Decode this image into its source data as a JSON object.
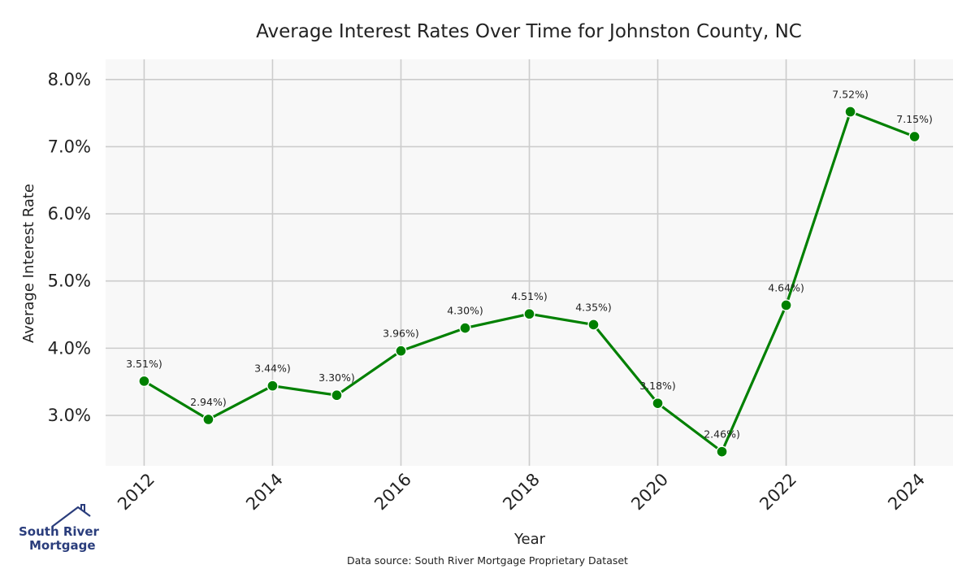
{
  "chart_data": {
    "type": "line",
    "title": "Average Interest Rates Over Time for Johnston County, NC",
    "xlabel": "Year",
    "ylabel": "Average Interest Rate",
    "x": [
      2012,
      2013,
      2014,
      2015,
      2016,
      2017,
      2018,
      2019,
      2020,
      2021,
      2022,
      2023,
      2024
    ],
    "series": [
      {
        "values": [
          3.51,
          2.94,
          3.44,
          3.3,
          3.96,
          4.3,
          4.51,
          4.35,
          3.18,
          2.46,
          4.64,
          7.52,
          7.15
        ],
        "labels": [
          "3.51%)",
          "2.94%)",
          "3.44%)",
          "3.30%)",
          "3.96%)",
          "4.30%)",
          "4.51%)",
          "4.35%)",
          "3.18%)",
          "2.46%)",
          "4.64%)",
          "7.52%)",
          "7.15%)"
        ],
        "color": "#008000"
      }
    ],
    "xticks": [
      2012,
      2014,
      2016,
      2018,
      2020,
      2022,
      2024
    ],
    "xtick_labels": [
      "2012",
      "2014",
      "2016",
      "2018",
      "2020",
      "2022",
      "2024"
    ],
    "yticks": [
      3.0,
      4.0,
      5.0,
      6.0,
      7.0,
      8.0
    ],
    "ytick_labels": [
      "3.0%",
      "4.0%",
      "5.0%",
      "6.0%",
      "7.0%",
      "8.0%"
    ],
    "ylim": [
      2.25,
      8.3
    ],
    "xlim": [
      2011.4,
      2024.6
    ],
    "grid": true,
    "plot_background": "#f8f8f8",
    "grid_color": "#cccccc"
  },
  "footer": {
    "source": "Data source: South River Mortgage Proprietary Dataset"
  },
  "logo": {
    "line1": "South River",
    "line2": "Mortgage",
    "color": "#2a3d7c"
  }
}
